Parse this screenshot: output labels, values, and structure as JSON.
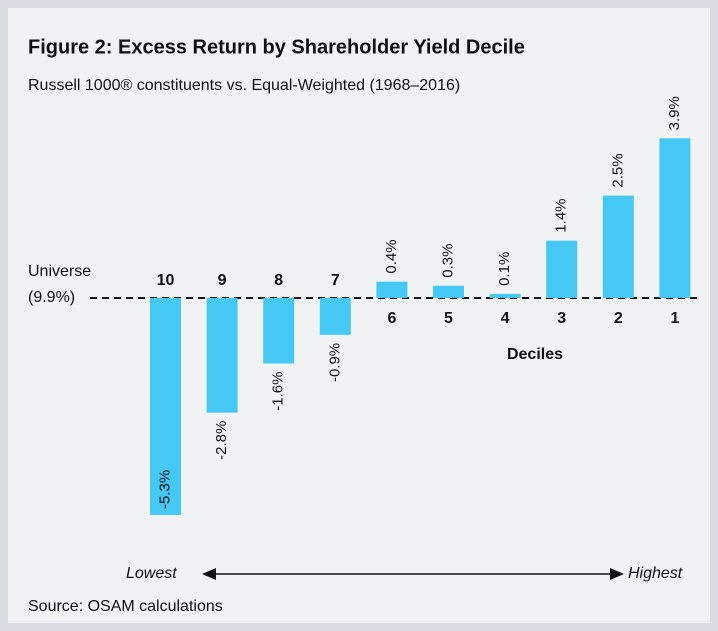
{
  "chart_data": {
    "type": "bar",
    "title": "Figure 2: Excess Return by Shareholder Yield Decile",
    "subtitle": "Russell 1000® constituents vs. Equal-Weighted (1968–2016)",
    "categories": [
      "10",
      "9",
      "8",
      "7",
      "6",
      "5",
      "4",
      "3",
      "2",
      "1"
    ],
    "values": [
      -5.3,
      -2.8,
      -1.6,
      -0.9,
      0.4,
      0.3,
      0.1,
      1.4,
      2.5,
      3.9
    ],
    "value_labels": [
      "-5.3%",
      "-2.8%",
      "-1.6%",
      "-0.9%",
      "0.4%",
      "0.3%",
      "0.1%",
      "1.4%",
      "2.5%",
      "3.9%"
    ],
    "color": "#45c8f4",
    "baseline_label": [
      "Universe",
      "(9.9%)"
    ],
    "x_axis_label": "Deciles",
    "annotations": [
      "Lowest",
      "Highest"
    ],
    "source": "Source: OSAM calculations"
  }
}
